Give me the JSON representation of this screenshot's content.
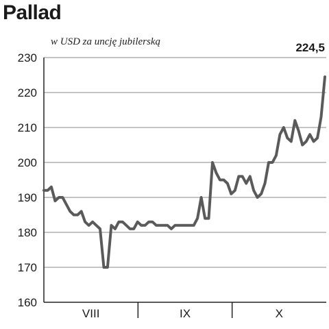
{
  "title": "Pallad",
  "subtitle": "w USD za uncję jubilerską",
  "last_value_label": "224,5",
  "colors": {
    "line": "#5a5a5a",
    "grid": "#8a8a8a",
    "axis": "#222222"
  },
  "chart_data": {
    "type": "line",
    "title": "Pallad",
    "subtitle": "w USD za uncję jubilerską",
    "ylim": [
      160,
      230
    ],
    "yticks": [
      160,
      170,
      180,
      190,
      200,
      210,
      220,
      230
    ],
    "grid": true,
    "months": [
      "VIII",
      "IX",
      "X"
    ],
    "series": [
      {
        "values": [
          192,
          192,
          193,
          189,
          190,
          190,
          188,
          186,
          185,
          185,
          186,
          183,
          182,
          183,
          182,
          181,
          170,
          170,
          182,
          181,
          183,
          183,
          182,
          181,
          181,
          183,
          182,
          182,
          183,
          183,
          182,
          182,
          182,
          182,
          181,
          182,
          182,
          182,
          182,
          182,
          182,
          184,
          190,
          184,
          184,
          200,
          197,
          195,
          195,
          194,
          191,
          192,
          196,
          196,
          194,
          196,
          192,
          190,
          191,
          194,
          200,
          200,
          202,
          208,
          210,
          207,
          206,
          212,
          209,
          205,
          206,
          208,
          206,
          207,
          213,
          224.5
        ]
      }
    ]
  }
}
